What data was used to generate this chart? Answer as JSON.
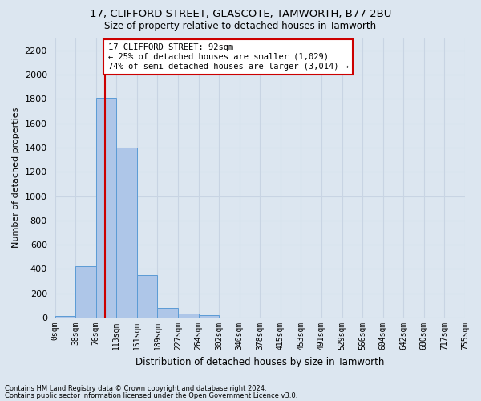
{
  "title_line1": "17, CLIFFORD STREET, GLASCOTE, TAMWORTH, B77 2BU",
  "title_line2": "Size of property relative to detached houses in Tamworth",
  "xlabel": "Distribution of detached houses by size in Tamworth",
  "ylabel": "Number of detached properties",
  "bin_labels": [
    "0sqm",
    "38sqm",
    "76sqm",
    "113sqm",
    "151sqm",
    "189sqm",
    "227sqm",
    "264sqm",
    "302sqm",
    "340sqm",
    "378sqm",
    "415sqm",
    "453sqm",
    "491sqm",
    "529sqm",
    "566sqm",
    "604sqm",
    "642sqm",
    "680sqm",
    "717sqm",
    "755sqm"
  ],
  "bar_values": [
    15,
    420,
    1810,
    1400,
    350,
    80,
    35,
    20,
    0,
    0,
    0,
    0,
    0,
    0,
    0,
    0,
    0,
    0,
    0,
    0
  ],
  "bar_color": "#aec6e8",
  "bar_edge_color": "#5b9bd5",
  "vline_x": 2.43,
  "annotation_text": "17 CLIFFORD STREET: 92sqm\n← 25% of detached houses are smaller (1,029)\n74% of semi-detached houses are larger (3,014) →",
  "annotation_box_color": "#ffffff",
  "annotation_box_edge_color": "#cc0000",
  "vline_color": "#cc0000",
  "ylim": [
    0,
    2300
  ],
  "yticks": [
    0,
    200,
    400,
    600,
    800,
    1000,
    1200,
    1400,
    1600,
    1800,
    2000,
    2200
  ],
  "grid_color": "#c8d4e3",
  "bg_color": "#dce6f0",
  "footnote1": "Contains HM Land Registry data © Crown copyright and database right 2024.",
  "footnote2": "Contains public sector information licensed under the Open Government Licence v3.0."
}
